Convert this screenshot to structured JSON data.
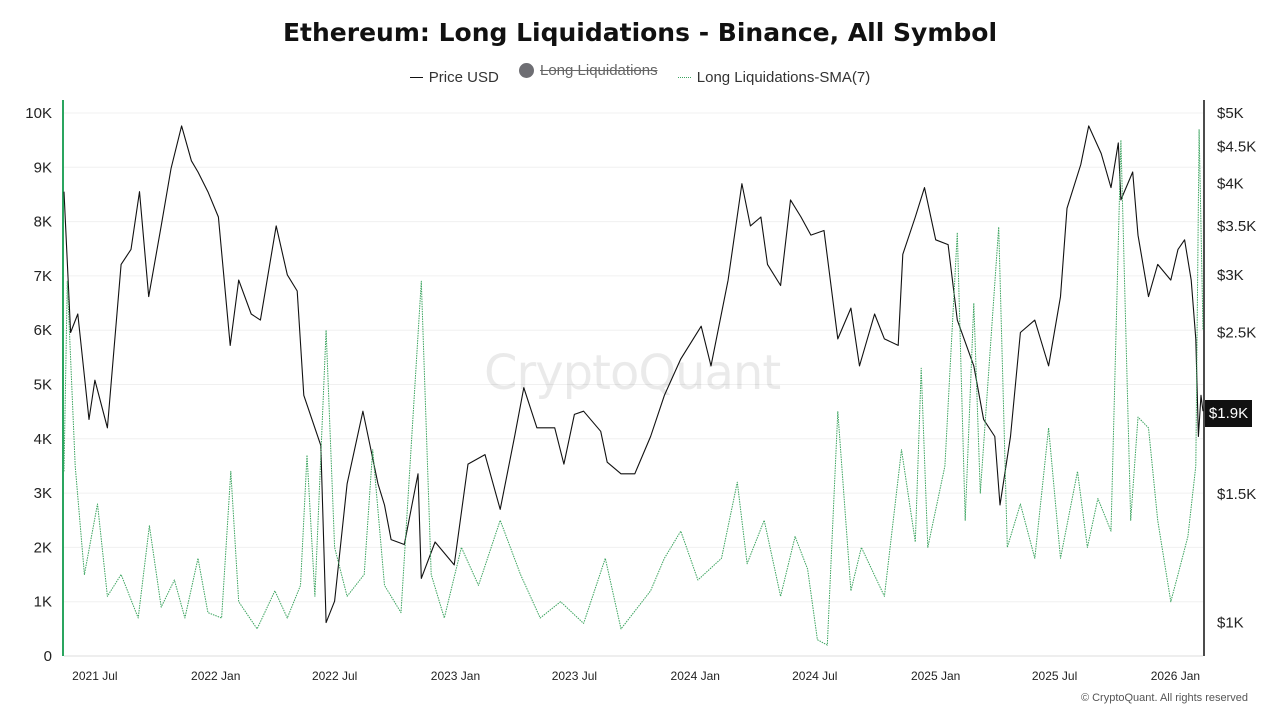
{
  "chart_data": {
    "type": "line",
    "title": "Ethereum: Long Liquidations - Binance, All Symbol",
    "legend": [
      {
        "name": "Price USD",
        "style": "solid",
        "color": "#111111",
        "enabled": true
      },
      {
        "name": "Long Liquidations",
        "style": "dot",
        "color": "#6e6e73",
        "enabled": false
      },
      {
        "name": "Long Liquidations-SMA(7)",
        "style": "dashed",
        "color": "#3aa35e",
        "enabled": true
      }
    ],
    "x_axis": {
      "type": "date",
      "range": [
        "2021-05-15",
        "2026-02-12"
      ],
      "ticks": [
        {
          "date": "2021-07-01",
          "label": "2021 Jul"
        },
        {
          "date": "2022-01-01",
          "label": "2022 Jan"
        },
        {
          "date": "2022-07-01",
          "label": "2022 Jul"
        },
        {
          "date": "2023-01-01",
          "label": "2023 Jan"
        },
        {
          "date": "2023-07-01",
          "label": "2023 Jul"
        },
        {
          "date": "2024-01-01",
          "label": "2024 Jan"
        },
        {
          "date": "2024-07-01",
          "label": "2024 Jul"
        },
        {
          "date": "2025-01-01",
          "label": "2025 Jan"
        },
        {
          "date": "2025-07-01",
          "label": "2025 Jul"
        },
        {
          "date": "2026-01-01",
          "label": "2026 Jan"
        }
      ]
    },
    "y_left": {
      "range": [
        0,
        10000
      ],
      "ticks": [
        {
          "value": 0,
          "label": "0"
        },
        {
          "value": 1000,
          "label": "1K"
        },
        {
          "value": 2000,
          "label": "2K"
        },
        {
          "value": 3000,
          "label": "3K"
        },
        {
          "value": 4000,
          "label": "4K"
        },
        {
          "value": 5000,
          "label": "5K"
        },
        {
          "value": 6000,
          "label": "6K"
        },
        {
          "value": 7000,
          "label": "7K"
        },
        {
          "value": 8000,
          "label": "8K"
        },
        {
          "value": 9000,
          "label": "9K"
        },
        {
          "value": 10000,
          "label": "10K"
        }
      ]
    },
    "y_right": {
      "scale": "log",
      "range": [
        900,
        5000
      ],
      "ticks": [
        {
          "value": 1000,
          "label": "$1K"
        },
        {
          "value": 1500,
          "label": "$1.5K"
        },
        {
          "value": 2500,
          "label": "$2.5K"
        },
        {
          "value": 3000,
          "label": "$3K"
        },
        {
          "value": 3500,
          "label": "$3.5K"
        },
        {
          "value": 4000,
          "label": "$4K"
        },
        {
          "value": 4500,
          "label": "$4.5K"
        },
        {
          "value": 5000,
          "label": "$5K"
        }
      ],
      "current_label": "$1.9K"
    },
    "series": [
      {
        "name": "Price USD",
        "axis": "right",
        "points": [
          [
            "2021-05-15",
            3900
          ],
          [
            "2021-05-25",
            2500
          ],
          [
            "2021-06-05",
            2650
          ],
          [
            "2021-06-22",
            1900
          ],
          [
            "2021-07-01",
            2150
          ],
          [
            "2021-07-20",
            1850
          ],
          [
            "2021-08-10",
            3100
          ],
          [
            "2021-08-25",
            3250
          ],
          [
            "2021-09-07",
            3900
          ],
          [
            "2021-09-21",
            2800
          ],
          [
            "2021-10-10",
            3500
          ],
          [
            "2021-10-25",
            4200
          ],
          [
            "2021-11-10",
            4800
          ],
          [
            "2021-11-25",
            4300
          ],
          [
            "2021-12-05",
            4150
          ],
          [
            "2021-12-20",
            3900
          ],
          [
            "2022-01-05",
            3600
          ],
          [
            "2022-01-23",
            2400
          ],
          [
            "2022-02-05",
            2950
          ],
          [
            "2022-02-24",
            2650
          ],
          [
            "2022-03-10",
            2600
          ],
          [
            "2022-04-03",
            3500
          ],
          [
            "2022-04-20",
            3000
          ],
          [
            "2022-05-05",
            2850
          ],
          [
            "2022-05-15",
            2050
          ],
          [
            "2022-06-10",
            1750
          ],
          [
            "2022-06-18",
            1000
          ],
          [
            "2022-07-01",
            1070
          ],
          [
            "2022-07-20",
            1550
          ],
          [
            "2022-08-13",
            1950
          ],
          [
            "2022-09-05",
            1550
          ],
          [
            "2022-09-15",
            1450
          ],
          [
            "2022-09-25",
            1300
          ],
          [
            "2022-10-15",
            1280
          ],
          [
            "2022-11-05",
            1600
          ],
          [
            "2022-11-10",
            1150
          ],
          [
            "2022-12-01",
            1290
          ],
          [
            "2022-12-30",
            1200
          ],
          [
            "2023-01-20",
            1650
          ],
          [
            "2023-02-15",
            1700
          ],
          [
            "2023-03-10",
            1430
          ],
          [
            "2023-04-01",
            1800
          ],
          [
            "2023-04-15",
            2100
          ],
          [
            "2023-05-05",
            1850
          ],
          [
            "2023-06-01",
            1850
          ],
          [
            "2023-06-15",
            1650
          ],
          [
            "2023-07-01",
            1930
          ],
          [
            "2023-07-15",
            1950
          ],
          [
            "2023-08-10",
            1830
          ],
          [
            "2023-08-20",
            1660
          ],
          [
            "2023-09-10",
            1600
          ],
          [
            "2023-10-01",
            1600
          ],
          [
            "2023-10-25",
            1800
          ],
          [
            "2023-11-15",
            2050
          ],
          [
            "2023-12-10",
            2300
          ],
          [
            "2024-01-10",
            2550
          ],
          [
            "2024-01-25",
            2250
          ],
          [
            "2024-02-20",
            2950
          ],
          [
            "2024-03-12",
            4000
          ],
          [
            "2024-03-25",
            3500
          ],
          [
            "2024-04-10",
            3600
          ],
          [
            "2024-04-20",
            3100
          ],
          [
            "2024-05-10",
            2900
          ],
          [
            "2024-05-25",
            3800
          ],
          [
            "2024-06-10",
            3600
          ],
          [
            "2024-06-25",
            3400
          ],
          [
            "2024-07-15",
            3450
          ],
          [
            "2024-08-05",
            2450
          ],
          [
            "2024-08-25",
            2700
          ],
          [
            "2024-09-07",
            2250
          ],
          [
            "2024-09-30",
            2650
          ],
          [
            "2024-10-15",
            2450
          ],
          [
            "2024-11-05",
            2400
          ],
          [
            "2024-11-12",
            3200
          ],
          [
            "2024-12-01",
            3600
          ],
          [
            "2024-12-15",
            3950
          ],
          [
            "2025-01-01",
            3350
          ],
          [
            "2025-01-20",
            3300
          ],
          [
            "2025-02-03",
            2600
          ],
          [
            "2025-02-28",
            2250
          ],
          [
            "2025-03-15",
            1900
          ],
          [
            "2025-04-01",
            1800
          ],
          [
            "2025-04-09",
            1450
          ],
          [
            "2025-04-25",
            1800
          ],
          [
            "2025-05-10",
            2500
          ],
          [
            "2025-06-01",
            2600
          ],
          [
            "2025-06-22",
            2250
          ],
          [
            "2025-07-10",
            2800
          ],
          [
            "2025-07-20",
            3700
          ],
          [
            "2025-08-10",
            4250
          ],
          [
            "2025-08-22",
            4800
          ],
          [
            "2025-09-10",
            4400
          ],
          [
            "2025-09-25",
            3950
          ],
          [
            "2025-10-06",
            4550
          ],
          [
            "2025-10-10",
            3800
          ],
          [
            "2025-10-28",
            4150
          ],
          [
            "2025-11-05",
            3400
          ],
          [
            "2025-11-21",
            2800
          ],
          [
            "2025-12-05",
            3100
          ],
          [
            "2025-12-25",
            2950
          ],
          [
            "2026-01-05",
            3250
          ],
          [
            "2026-01-15",
            3350
          ],
          [
            "2026-01-25",
            2950
          ],
          [
            "2026-02-01",
            2450
          ],
          [
            "2026-02-05",
            1800
          ],
          [
            "2026-02-09",
            2050
          ],
          [
            "2026-02-12",
            1950
          ]
        ]
      },
      {
        "name": "Long Liquidations-SMA(7)",
        "axis": "left",
        "points": [
          [
            "2021-05-15",
            3400
          ],
          [
            "2021-05-20",
            6900
          ],
          [
            "2021-06-01",
            3500
          ],
          [
            "2021-06-15",
            1500
          ],
          [
            "2021-07-05",
            2800
          ],
          [
            "2021-07-20",
            1100
          ],
          [
            "2021-08-10",
            1500
          ],
          [
            "2021-09-05",
            700
          ],
          [
            "2021-09-22",
            2400
          ],
          [
            "2021-10-10",
            900
          ],
          [
            "2021-10-30",
            1400
          ],
          [
            "2021-11-15",
            700
          ],
          [
            "2021-12-05",
            1800
          ],
          [
            "2021-12-20",
            800
          ],
          [
            "2022-01-10",
            700
          ],
          [
            "2022-01-24",
            3400
          ],
          [
            "2022-02-05",
            1000
          ],
          [
            "2022-03-05",
            500
          ],
          [
            "2022-04-01",
            1200
          ],
          [
            "2022-04-20",
            700
          ],
          [
            "2022-05-10",
            1300
          ],
          [
            "2022-05-20",
            3700
          ],
          [
            "2022-06-01",
            1100
          ],
          [
            "2022-06-18",
            6000
          ],
          [
            "2022-07-01",
            2000
          ],
          [
            "2022-07-20",
            1100
          ],
          [
            "2022-08-15",
            1500
          ],
          [
            "2022-08-28",
            3800
          ],
          [
            "2022-09-15",
            1300
          ],
          [
            "2022-10-10",
            800
          ],
          [
            "2022-11-10",
            6900
          ],
          [
            "2022-11-25",
            1500
          ],
          [
            "2022-12-15",
            700
          ],
          [
            "2023-01-10",
            2000
          ],
          [
            "2023-02-05",
            1300
          ],
          [
            "2023-03-10",
            2500
          ],
          [
            "2023-04-10",
            1500
          ],
          [
            "2023-05-10",
            700
          ],
          [
            "2023-06-10",
            1000
          ],
          [
            "2023-07-15",
            600
          ],
          [
            "2023-08-17",
            1800
          ],
          [
            "2023-09-10",
            500
          ],
          [
            "2023-10-25",
            1200
          ],
          [
            "2023-11-15",
            1800
          ],
          [
            "2023-12-10",
            2300
          ],
          [
            "2024-01-05",
            1400
          ],
          [
            "2024-02-10",
            1800
          ],
          [
            "2024-03-05",
            3200
          ],
          [
            "2024-03-20",
            1700
          ],
          [
            "2024-04-15",
            2500
          ],
          [
            "2024-05-10",
            1100
          ],
          [
            "2024-06-01",
            2200
          ],
          [
            "2024-06-20",
            1600
          ],
          [
            "2024-07-05",
            300
          ],
          [
            "2024-07-20",
            200
          ],
          [
            "2024-08-05",
            4500
          ],
          [
            "2024-08-25",
            1200
          ],
          [
            "2024-09-10",
            2000
          ],
          [
            "2024-10-15",
            1100
          ],
          [
            "2024-11-10",
            3800
          ],
          [
            "2024-12-01",
            2100
          ],
          [
            "2024-12-10",
            5300
          ],
          [
            "2024-12-20",
            2000
          ],
          [
            "2025-01-15",
            3500
          ],
          [
            "2025-02-03",
            7800
          ],
          [
            "2025-02-15",
            2500
          ],
          [
            "2025-02-28",
            6500
          ],
          [
            "2025-03-10",
            3000
          ],
          [
            "2025-04-07",
            7900
          ],
          [
            "2025-04-20",
            2000
          ],
          [
            "2025-05-10",
            2800
          ],
          [
            "2025-06-01",
            1800
          ],
          [
            "2025-06-22",
            4200
          ],
          [
            "2025-07-10",
            1800
          ],
          [
            "2025-08-05",
            3400
          ],
          [
            "2025-08-20",
            2000
          ],
          [
            "2025-09-05",
            2900
          ],
          [
            "2025-09-25",
            2300
          ],
          [
            "2025-10-10",
            9500
          ],
          [
            "2025-10-25",
            2500
          ],
          [
            "2025-11-05",
            4400
          ],
          [
            "2025-11-21",
            4200
          ],
          [
            "2025-12-05",
            2500
          ],
          [
            "2025-12-25",
            1000
          ],
          [
            "2026-01-05",
            1500
          ],
          [
            "2026-01-20",
            2200
          ],
          [
            "2026-02-01",
            3500
          ],
          [
            "2026-02-06",
            9700
          ],
          [
            "2026-02-12",
            6000
          ]
        ]
      }
    ],
    "watermark": "CryptoQuant",
    "copyright": "© CryptoQuant. All rights reserved"
  }
}
